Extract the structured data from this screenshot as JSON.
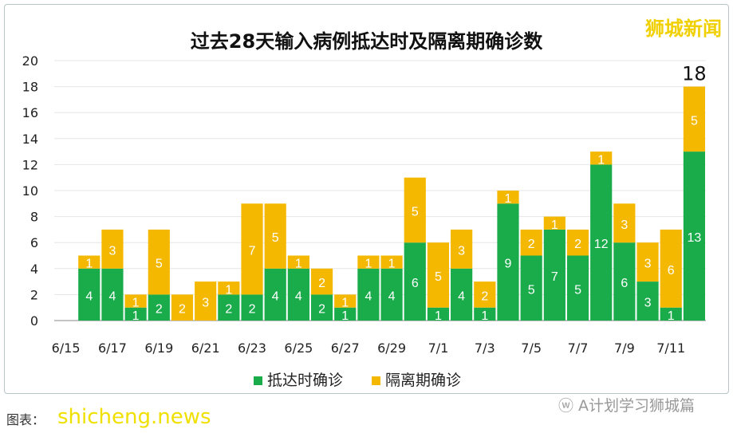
{
  "brand": "狮城新闻",
  "caption": "图表：",
  "watermark": "shicheng.news",
  "wechat": "A计划学习狮城篇",
  "colors": {
    "arrival": "#1aab4b",
    "quarantine": "#f5b800"
  },
  "chart_data": {
    "type": "bar",
    "stacked": true,
    "title": "过去28天输入病例抵达时及隔离期确诊数",
    "ylim": [
      0,
      20
    ],
    "yticks": [
      0,
      2,
      4,
      6,
      8,
      10,
      12,
      14,
      16,
      18,
      20
    ],
    "grid": true,
    "legend": "bottom",
    "categories": [
      "6/15",
      "6/16",
      "6/17",
      "6/18",
      "6/19",
      "6/20",
      "6/21",
      "6/22",
      "6/23",
      "6/24",
      "6/25",
      "6/26",
      "6/27",
      "6/28",
      "6/29",
      "6/30",
      "7/1",
      "7/2",
      "7/3",
      "7/4",
      "7/5",
      "7/6",
      "7/7",
      "7/8",
      "7/9",
      "7/10",
      "7/11",
      "7/12"
    ],
    "xtick_labels": [
      "6/15",
      "6/17",
      "6/19",
      "6/21",
      "6/23",
      "6/25",
      "6/27",
      "6/29",
      "7/1",
      "7/3",
      "7/5",
      "7/7",
      "7/9",
      "7/11"
    ],
    "series": [
      {
        "name": "抵达时确诊",
        "values": [
          0,
          4,
          4,
          1,
          2,
          0,
          0,
          2,
          2,
          4,
          4,
          2,
          1,
          4,
          4,
          6,
          1,
          4,
          1,
          9,
          5,
          7,
          5,
          12,
          6,
          3,
          1,
          13
        ]
      },
      {
        "name": "隔离期确诊",
        "values": [
          0,
          1,
          3,
          1,
          5,
          2,
          3,
          1,
          7,
          5,
          1,
          2,
          1,
          1,
          1,
          5,
          5,
          3,
          2,
          1,
          2,
          1,
          2,
          1,
          3,
          3,
          6,
          5
        ]
      }
    ],
    "annotations": [
      "18"
    ]
  }
}
